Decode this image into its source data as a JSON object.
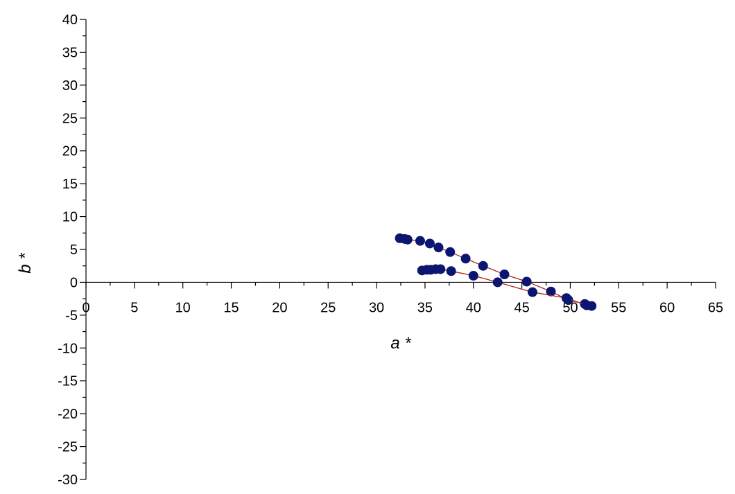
{
  "chart_data": {
    "type": "scatter",
    "title": "",
    "xlabel": "a *",
    "ylabel": "b *",
    "xlim": [
      0,
      65
    ],
    "ylim": [
      -30,
      40
    ],
    "x_ticks": [
      0,
      5,
      10,
      15,
      20,
      25,
      30,
      35,
      40,
      45,
      50,
      55,
      60,
      65
    ],
    "y_ticks": [
      -30,
      -25,
      -20,
      -15,
      -10,
      -5,
      0,
      5,
      10,
      15,
      20,
      25,
      30,
      35,
      40
    ],
    "grid": false,
    "legend": "none",
    "axes_cross_at_origin": true,
    "colors": {
      "marker": "#0a1670",
      "line": "#b02020",
      "axis": "#000000"
    },
    "series": [
      {
        "x": [
          32.4,
          32.9,
          33.2,
          34.5,
          35.5,
          36.4,
          37.6,
          39.2,
          41.0,
          43.2,
          45.5,
          48.0,
          49.8,
          51.5,
          52.2
        ],
        "y": [
          6.7,
          6.6,
          6.5,
          6.3,
          5.9,
          5.3,
          4.6,
          3.6,
          2.5,
          1.2,
          0.1,
          -1.4,
          -2.7,
          -3.3,
          -3.6
        ]
      },
      {
        "x": [
          34.7,
          35.2,
          35.6,
          36.1,
          36.6,
          37.7,
          40.0,
          42.5,
          46.1,
          49.6,
          51.7
        ],
        "y": [
          1.8,
          1.9,
          1.9,
          2.0,
          2.0,
          1.7,
          1.0,
          0.0,
          -1.5,
          -2.4,
          -3.5
        ]
      }
    ]
  }
}
